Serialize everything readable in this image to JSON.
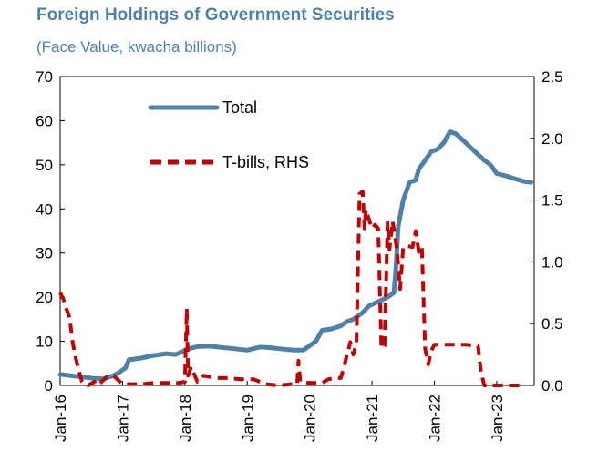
{
  "chart_data": {
    "type": "line",
    "title": "Foreign Holdings of Government Securities",
    "subtitle": "(Face Value, kwacha billions)",
    "xlabel": "",
    "ylabel": "",
    "x_tick_labels": [
      "Jan-16",
      "Jan-17",
      "Jan-18",
      "Jan-19",
      "Jan-20",
      "Jan-21",
      "Jan-22",
      "Jan-23"
    ],
    "xlim": [
      2016.0,
      2023.6
    ],
    "y_left": {
      "lim": [
        0,
        70
      ],
      "ticks": [
        "0",
        "10",
        "20",
        "30",
        "40",
        "50",
        "60",
        "70"
      ],
      "values": [
        0,
        10,
        20,
        30,
        40,
        50,
        60,
        70
      ]
    },
    "y_right": {
      "lim": [
        0,
        2.5
      ],
      "ticks": [
        "0.0",
        "0.5",
        "1.0",
        "1.5",
        "2.0",
        "2.5"
      ],
      "values": [
        0,
        0.5,
        1.0,
        1.5,
        2.0,
        2.5
      ]
    },
    "legend_placement": "upper-left inside plot",
    "grid": false,
    "series": [
      {
        "name": "Total",
        "axis": "left",
        "color": "#4f81a8",
        "style": "solid",
        "points": [
          [
            2016.0,
            2.5
          ],
          [
            2016.3,
            2.0
          ],
          [
            2016.55,
            1.6
          ],
          [
            2016.7,
            1.5
          ],
          [
            2016.85,
            2.2
          ],
          [
            2016.95,
            3.0
          ],
          [
            2017.05,
            4.0
          ],
          [
            2017.1,
            5.8
          ],
          [
            2017.3,
            6.2
          ],
          [
            2017.5,
            6.8
          ],
          [
            2017.7,
            7.2
          ],
          [
            2017.85,
            7.0
          ],
          [
            2017.95,
            7.6
          ],
          [
            2018.05,
            8.3
          ],
          [
            2018.2,
            8.8
          ],
          [
            2018.4,
            8.9
          ],
          [
            2018.6,
            8.6
          ],
          [
            2018.8,
            8.3
          ],
          [
            2019.0,
            8.0
          ],
          [
            2019.2,
            8.7
          ],
          [
            2019.4,
            8.5
          ],
          [
            2019.6,
            8.2
          ],
          [
            2019.75,
            8.0
          ],
          [
            2019.9,
            8.0
          ],
          [
            2020.0,
            9.0
          ],
          [
            2020.1,
            10.0
          ],
          [
            2020.2,
            12.5
          ],
          [
            2020.35,
            12.8
          ],
          [
            2020.5,
            13.5
          ],
          [
            2020.6,
            14.5
          ],
          [
            2020.7,
            15.0
          ],
          [
            2020.85,
            16.5
          ],
          [
            2020.95,
            18.0
          ],
          [
            2021.1,
            19.0
          ],
          [
            2021.25,
            20.0
          ],
          [
            2021.35,
            21.0
          ],
          [
            2021.38,
            26.0
          ],
          [
            2021.42,
            36.0
          ],
          [
            2021.5,
            42.0
          ],
          [
            2021.6,
            46.0
          ],
          [
            2021.7,
            46.5
          ],
          [
            2021.75,
            49.0
          ],
          [
            2021.85,
            51.0
          ],
          [
            2021.95,
            53.0
          ],
          [
            2022.05,
            53.5
          ],
          [
            2022.15,
            55.0
          ],
          [
            2022.25,
            57.5
          ],
          [
            2022.35,
            57.0
          ],
          [
            2022.5,
            55.0
          ],
          [
            2022.65,
            53.0
          ],
          [
            2022.8,
            51.0
          ],
          [
            2022.9,
            50.0
          ],
          [
            2023.0,
            48.0
          ],
          [
            2023.15,
            47.5
          ],
          [
            2023.3,
            46.8
          ],
          [
            2023.45,
            46.2
          ],
          [
            2023.55,
            46.0
          ]
        ]
      },
      {
        "name": "T-bills, RHS",
        "axis": "right",
        "color": "#c00000",
        "style": "dashed",
        "points": [
          [
            2016.0,
            0.75
          ],
          [
            2016.05,
            0.7
          ],
          [
            2016.1,
            0.62
          ],
          [
            2016.15,
            0.55
          ],
          [
            2016.2,
            0.35
          ],
          [
            2016.25,
            0.22
          ],
          [
            2016.3,
            0.12
          ],
          [
            2016.35,
            0.03
          ],
          [
            2016.45,
            0.0
          ],
          [
            2016.55,
            0.03
          ],
          [
            2016.6,
            0.0
          ],
          [
            2016.75,
            0.07
          ],
          [
            2016.85,
            0.08
          ],
          [
            2017.0,
            0.01
          ],
          [
            2017.1,
            0.01
          ],
          [
            2017.3,
            0.01
          ],
          [
            2017.5,
            0.02
          ],
          [
            2017.7,
            0.02
          ],
          [
            2017.9,
            0.02
          ],
          [
            2018.0,
            0.03
          ],
          [
            2018.03,
            0.62
          ],
          [
            2018.05,
            0.08
          ],
          [
            2018.1,
            0.15
          ],
          [
            2018.2,
            0.03
          ],
          [
            2018.3,
            0.08
          ],
          [
            2018.5,
            0.06
          ],
          [
            2018.7,
            0.06
          ],
          [
            2018.9,
            0.05
          ],
          [
            2019.1,
            0.05
          ],
          [
            2019.3,
            0.01
          ],
          [
            2019.5,
            0.0
          ],
          [
            2019.7,
            0.01
          ],
          [
            2019.8,
            0.01
          ],
          [
            2019.82,
            0.2
          ],
          [
            2019.85,
            0.03
          ],
          [
            2020.0,
            0.02
          ],
          [
            2020.2,
            0.02
          ],
          [
            2020.3,
            0.05
          ],
          [
            2020.4,
            0.06
          ],
          [
            2020.5,
            0.06
          ],
          [
            2020.55,
            0.15
          ],
          [
            2020.6,
            0.25
          ],
          [
            2020.62,
            0.28
          ],
          [
            2020.65,
            0.35
          ],
          [
            2020.7,
            0.25
          ],
          [
            2020.75,
            0.34
          ],
          [
            2020.8,
            1.55
          ],
          [
            2020.85,
            1.57
          ],
          [
            2020.88,
            1.27
          ],
          [
            2020.9,
            1.42
          ],
          [
            2021.0,
            1.27
          ],
          [
            2021.05,
            1.3
          ],
          [
            2021.1,
            1.27
          ],
          [
            2021.15,
            0.3
          ],
          [
            2021.2,
            0.32
          ],
          [
            2021.25,
            1.32
          ],
          [
            2021.28,
            1.1
          ],
          [
            2021.33,
            1.33
          ],
          [
            2021.4,
            1.1
          ],
          [
            2021.45,
            0.78
          ],
          [
            2021.5,
            1.12
          ],
          [
            2021.55,
            1.13
          ],
          [
            2021.65,
            1.12
          ],
          [
            2021.7,
            1.25
          ],
          [
            2021.75,
            1.08
          ],
          [
            2021.8,
            1.12
          ],
          [
            2021.85,
            0.3
          ],
          [
            2021.9,
            0.17
          ],
          [
            2021.95,
            0.28
          ],
          [
            2022.0,
            0.33
          ],
          [
            2022.2,
            0.33
          ],
          [
            2022.5,
            0.33
          ],
          [
            2022.7,
            0.32
          ],
          [
            2022.75,
            0.1
          ],
          [
            2022.8,
            0.0
          ],
          [
            2022.9,
            0.0
          ],
          [
            2023.1,
            0.0
          ],
          [
            2023.3,
            0.0
          ],
          [
            2023.4,
            0.0
          ]
        ]
      }
    ]
  }
}
